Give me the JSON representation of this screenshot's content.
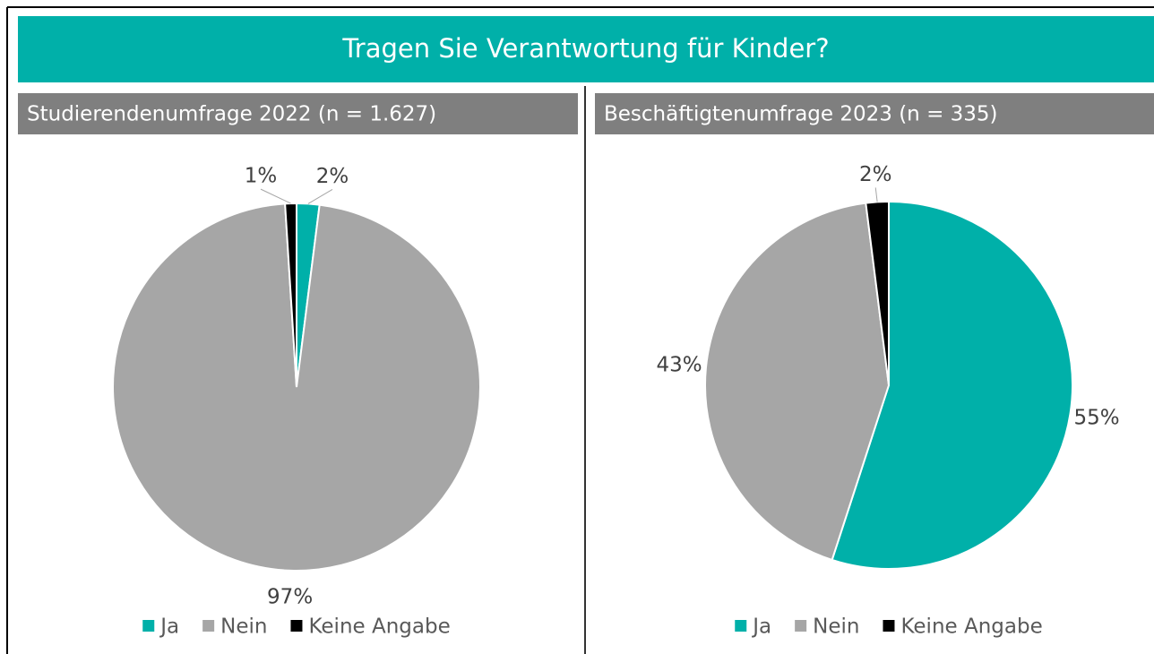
{
  "title": "Tragen Sie Verantwortung für Kinder?",
  "chart_data": [
    {
      "type": "pie",
      "title": "Studierendenumfrage 2022 (n = 1.627)",
      "categories": [
        "Ja",
        "Nein",
        "Keine Angabe"
      ],
      "values": [
        2,
        97,
        1
      ],
      "value_labels": [
        "2%",
        "97%",
        "1%"
      ],
      "colors": [
        "#00b0a9",
        "#a6a6a6",
        "#000000"
      ],
      "legend": "bottom"
    },
    {
      "type": "pie",
      "title": "Beschäftigtenumfrage 2023 (n = 335)",
      "categories": [
        "Ja",
        "Nein",
        "Keine Angabe"
      ],
      "values": [
        55,
        43,
        2
      ],
      "value_labels": [
        "55%",
        "43%",
        "2%"
      ],
      "colors": [
        "#00b0a9",
        "#a6a6a6",
        "#000000"
      ],
      "legend": "bottom"
    }
  ]
}
